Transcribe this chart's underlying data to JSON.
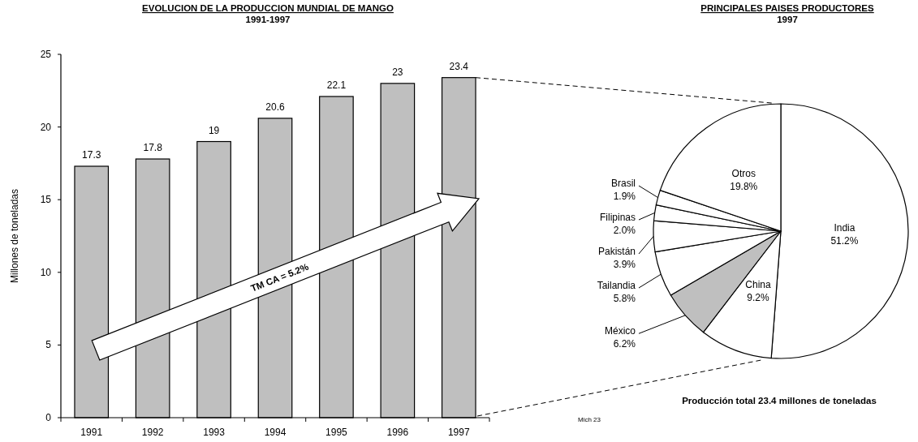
{
  "chart_data": [
    {
      "type": "bar",
      "title": "EVOLUCION DE LA PRODUCCION MUNDIAL DE MANGO",
      "subtitle": "1991-1997",
      "ylabel": "Millones de toneladas",
      "categories": [
        "1991",
        "1992",
        "1993",
        "1994",
        "1995",
        "1996",
        "1997"
      ],
      "values": [
        17.3,
        17.8,
        19,
        20.6,
        22.1,
        23,
        23.4
      ],
      "color": "#bfbfbf",
      "ylim": [
        0,
        25
      ],
      "yticks": [
        0,
        5,
        10,
        15,
        20,
        25
      ],
      "grid": false,
      "data_labels": true,
      "annotations": [
        "TM CA = 5.2%",
        "Mich 23"
      ]
    },
    {
      "type": "pie",
      "title": "PRINCIPALES PAISES PRODUCTORES",
      "subtitle": "1997",
      "categories": [
        "India",
        "China",
        "México",
        "Tailandia",
        "Pakistán",
        "Filipinas",
        "Brasil",
        "Otros"
      ],
      "values": [
        51.2,
        9.2,
        6.2,
        5.8,
        3.9,
        2.0,
        1.9,
        19.8
      ],
      "colors": [
        "#ffffff",
        "#ffffff",
        "#bfbfbf",
        "#ffffff",
        "#ffffff",
        "#ffffff",
        "#ffffff",
        "#ffffff"
      ],
      "value_labels": [
        "51.2%",
        "9.2%",
        "6.2%",
        "5.8%",
        "3.9%",
        "2.0%",
        "1.9%",
        "19.8%"
      ],
      "annotations": [
        "Producción total 23.4 millones de toneladas"
      ]
    }
  ]
}
